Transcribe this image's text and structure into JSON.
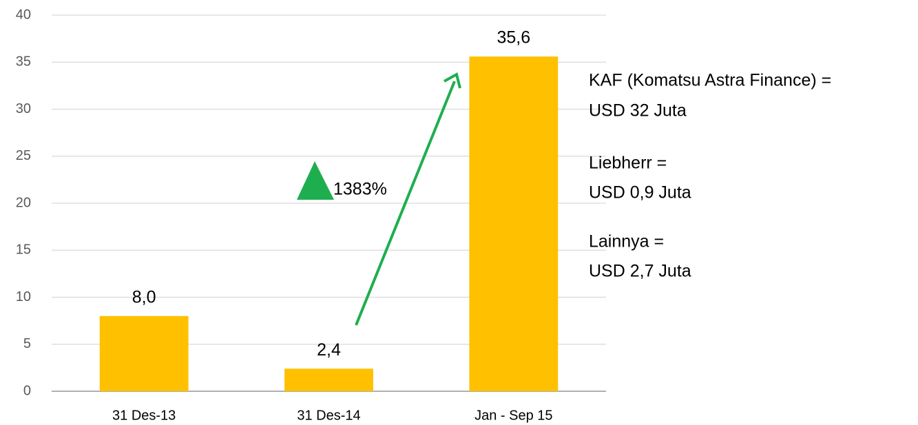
{
  "chart_data": {
    "type": "bar",
    "categories": [
      "31 Des-13",
      "31 Des-14",
      "Jan - Sep 15"
    ],
    "values": [
      8.0,
      2.4,
      35.6
    ],
    "value_labels": [
      "8,0",
      "2,4",
      "35,6"
    ],
    "color": "#ffc000",
    "ylim": [
      0,
      40
    ],
    "yticks": [
      0,
      5,
      10,
      15,
      20,
      25,
      30,
      35,
      40
    ],
    "grid": true,
    "growth_label": "1383%",
    "annotations": [
      "KAF (Komatsu Astra Finance) =",
      "USD 32 Juta",
      "Liebherr =",
      "USD 0,9 Juta",
      "Lainnya =",
      "USD 2,7 Juta"
    ]
  }
}
